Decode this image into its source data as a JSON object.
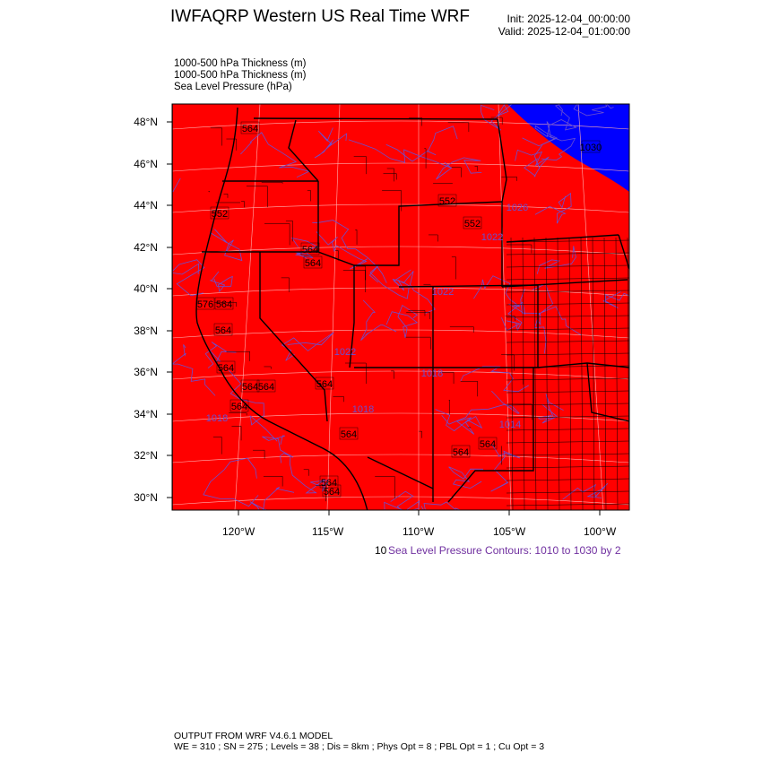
{
  "header": {
    "title": "IWFAQRP Western US Real Time WRF",
    "init": "Init: 2025-12-04_00:00:00",
    "valid": "Valid: 2025-12-04_01:00:00"
  },
  "fields": [
    "1000-500 hPa Thickness   (m)",
    "1000-500 hPa Thickness   (m)",
    "Sea Level Pressure   (hPa)"
  ],
  "map": {
    "lat_ticks": [
      "48°N",
      "46°N",
      "44°N",
      "42°N",
      "40°N",
      "38°N",
      "36°N",
      "34°N",
      "32°N",
      "30°N"
    ],
    "lon_ticks": [
      "120°W",
      "115°W",
      "110°W",
      "105°W",
      "100°W"
    ],
    "colors": {
      "warm_fill": "#ff0000",
      "cold_fill": "#0000ff",
      "slp_contour": "#6a4fd0",
      "borders": "#000000"
    },
    "thickness_labels": [
      "564",
      "552",
      "552",
      "552",
      "564",
      "564",
      "576",
      "564",
      "564",
      "564",
      "564",
      "564",
      "564",
      "564",
      "564",
      "564",
      "564",
      "564",
      "564",
      "1030"
    ],
    "slp_labels": [
      "1018",
      "1022",
      "1022",
      "1026",
      "1018",
      "1022",
      "1014",
      "1018"
    ]
  },
  "legend": {
    "cut_text": "10",
    "slp_contours": "Sea Level Pressure Contours: 1010 to 1030 by 2"
  },
  "footer": {
    "line1": "OUTPUT FROM WRF V4.6.1 MODEL",
    "line2": "WE = 310 ; SN = 275 ; Levels = 38 ; Dis = 8km ; Phys Opt = 8 ; PBL Opt = 1 ; Cu Opt = 3"
  }
}
